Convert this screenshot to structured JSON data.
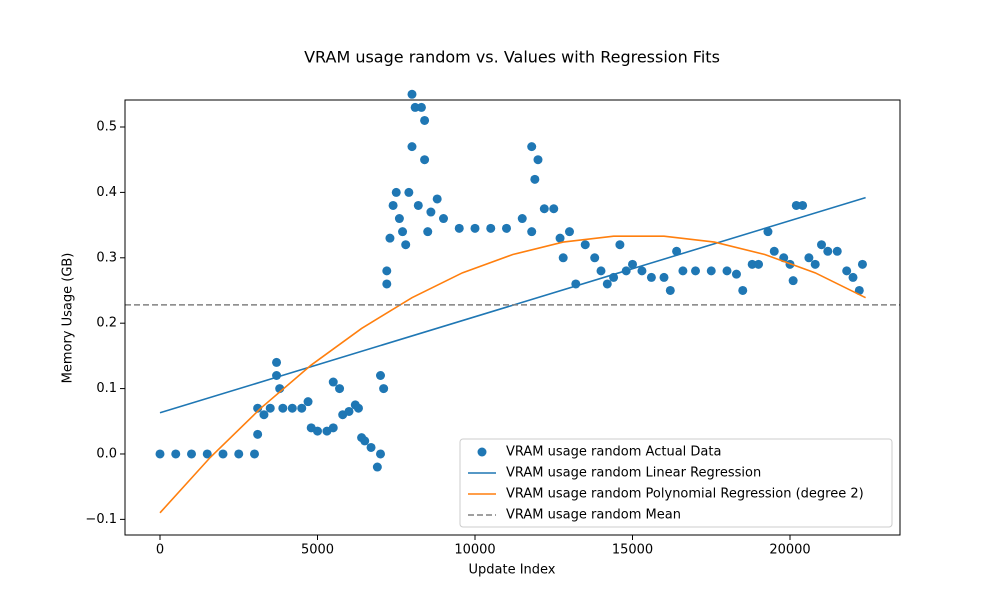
{
  "chart_data": {
    "type": "scatter",
    "title": "VRAM usage random vs. Values with Regression Fits",
    "x_label": "Update Index",
    "y_label": "Memory Usage (GB)",
    "xlim": [
      -1111,
      23492
    ],
    "ylim": [
      -0.1239,
      0.5413
    ],
    "xticks": [
      0,
      5000,
      10000,
      15000,
      20000
    ],
    "yticks": [
      {
        "value": -0.1,
        "label": "−0.1"
      },
      {
        "value": 0,
        "label": "0.0"
      },
      0.1,
      0.2,
      0.3,
      0.4,
      0.5
    ],
    "legend": "lower right",
    "series": [
      {
        "name": "VRAM usage random Actual Data",
        "color": "#1f77b4",
        "type": "scatter",
        "x": [
          0,
          500,
          1000,
          1500,
          2000,
          2500,
          3000,
          3100,
          3100,
          3300,
          3500,
          3700,
          3700,
          3800,
          3900,
          4200,
          4500,
          4700,
          4800,
          5000,
          5300,
          5500,
          5500,
          5700,
          5800,
          6000,
          6200,
          6300,
          6400,
          6500,
          6700,
          6900,
          7000,
          7000,
          7100,
          7200,
          7200,
          7300,
          7400,
          7500,
          7600,
          7700,
          7800,
          7900,
          8000,
          8000,
          8100,
          8200,
          8300,
          8400,
          8400,
          8500,
          8600,
          8800,
          9000,
          9500,
          10000,
          10500,
          11000,
          11500,
          11800,
          11800,
          11900,
          12000,
          12200,
          12500,
          12700,
          12800,
          13000,
          13200,
          13500,
          13800,
          14000,
          14200,
          14400,
          14600,
          14800,
          15000,
          15300,
          15600,
          16000,
          16200,
          16400,
          16600,
          17000,
          17500,
          18000,
          18300,
          18500,
          18800,
          19000,
          19300,
          19500,
          19800,
          20000,
          20100,
          20200,
          20400,
          20600,
          20800,
          21000,
          21200,
          21500,
          21800,
          22000,
          22200,
          22300
        ],
        "values": [
          0,
          0,
          0,
          0,
          0,
          0,
          0,
          0.03,
          0.07,
          0.06,
          0.07,
          0.14,
          0.12,
          0.1,
          0.07,
          0.07,
          0.07,
          0.08,
          0.04,
          0.035,
          0.035,
          0.04,
          0.11,
          0.1,
          0.06,
          0.065,
          0.075,
          0.07,
          0.025,
          0.02,
          0.01,
          -0.02,
          0,
          0.12,
          0.1,
          0.26,
          0.28,
          0.33,
          0.38,
          0.4,
          0.36,
          0.34,
          0.32,
          0.4,
          0.55,
          0.47,
          0.53,
          0.38,
          0.53,
          0.45,
          0.51,
          0.34,
          0.37,
          0.39,
          0.36,
          0.345,
          0.345,
          0.345,
          0.345,
          0.36,
          0.34,
          0.47,
          0.42,
          0.45,
          0.375,
          0.375,
          0.33,
          0.3,
          0.34,
          0.26,
          0.32,
          0.3,
          0.28,
          0.26,
          0.27,
          0.32,
          0.28,
          0.29,
          0.28,
          0.27,
          0.27,
          0.25,
          0.31,
          0.28,
          0.28,
          0.28,
          0.28,
          0.275,
          0.25,
          0.29,
          0.29,
          0.34,
          0.31,
          0.3,
          0.29,
          0.265,
          0.38,
          0.38,
          0.3,
          0.29,
          0.32,
          0.31,
          0.31,
          0.28,
          0.27,
          0.25,
          0.29
        ]
      },
      {
        "name": "VRAM usage random Linear Regression",
        "color": "#1f77b4",
        "type": "line",
        "x": [
          0,
          22400
        ],
        "values": [
          0.063,
          0.392
        ]
      },
      {
        "name": "VRAM usage random Polynomial Regression (degree 2)",
        "color": "#ff7f0e",
        "type": "line",
        "x": [
          0,
          1600,
          3200,
          4800,
          6400,
          8000,
          9600,
          11200,
          12800,
          14400,
          16000,
          17600,
          19200,
          20800,
          22400
        ],
        "values": [
          -0.09,
          -0.005,
          0.07,
          0.136,
          0.192,
          0.239,
          0.277,
          0.305,
          0.324,
          0.333,
          0.333,
          0.324,
          0.305,
          0.277,
          0.239
        ]
      },
      {
        "name": "VRAM usage random Mean",
        "color": "#808080",
        "type": "hline",
        "dash": true,
        "values": [
          0.228
        ]
      }
    ]
  }
}
